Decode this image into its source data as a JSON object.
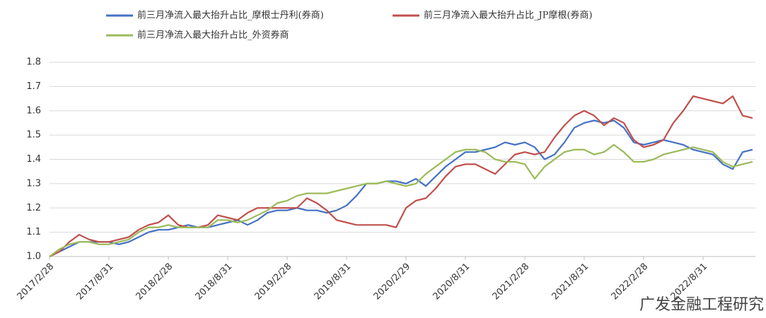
{
  "chart_data": {
    "type": "line",
    "categories": [
      "2017/2/28",
      null,
      null,
      null,
      null,
      null,
      "2017/8/31",
      null,
      null,
      null,
      null,
      null,
      "2018/2/28",
      null,
      null,
      null,
      null,
      null,
      "2018/8/31",
      null,
      null,
      null,
      null,
      null,
      "2019/2/28",
      null,
      null,
      null,
      null,
      null,
      "2019/8/31",
      null,
      null,
      null,
      null,
      null,
      "2020/2/29",
      null,
      null,
      null,
      null,
      null,
      "2020/8/31",
      null,
      null,
      null,
      null,
      null,
      "2021/2/28",
      null,
      null,
      null,
      null,
      null,
      "2021/8/31",
      null,
      null,
      null,
      null,
      null,
      "2022/2/28",
      null,
      null,
      null,
      null,
      null,
      "2022/8/31",
      null,
      null,
      null,
      null,
      null
    ],
    "series": [
      {
        "name": "前三月净流入最大抬升占比_摩根士丹利(券商)",
        "color": "#4472c4",
        "values": [
          1.0,
          1.02,
          1.04,
          1.06,
          1.06,
          1.06,
          1.06,
          1.05,
          1.06,
          1.08,
          1.1,
          1.11,
          1.11,
          1.12,
          1.13,
          1.12,
          1.12,
          1.13,
          1.14,
          1.15,
          1.13,
          1.15,
          1.18,
          1.19,
          1.19,
          1.2,
          1.19,
          1.19,
          1.18,
          1.19,
          1.21,
          1.25,
          1.3,
          1.3,
          1.31,
          1.31,
          1.3,
          1.32,
          1.29,
          1.33,
          1.37,
          1.4,
          1.43,
          1.43,
          1.44,
          1.45,
          1.47,
          1.46,
          1.47,
          1.45,
          1.4,
          1.42,
          1.47,
          1.53,
          1.55,
          1.56,
          1.55,
          1.56,
          1.53,
          1.47,
          1.46,
          1.47,
          1.48,
          1.47,
          1.46,
          1.44,
          1.43,
          1.42,
          1.38,
          1.36,
          1.43,
          1.44
        ]
      },
      {
        "name": "前三月净流入最大抬升占比_JP摩根(券商)",
        "color": "#c0504d",
        "values": [
          1.0,
          1.02,
          1.06,
          1.09,
          1.07,
          1.06,
          1.06,
          1.07,
          1.08,
          1.11,
          1.13,
          1.14,
          1.17,
          1.13,
          1.12,
          1.12,
          1.13,
          1.17,
          1.16,
          1.15,
          1.18,
          1.2,
          1.2,
          1.2,
          1.2,
          1.2,
          1.24,
          1.22,
          1.19,
          1.15,
          1.14,
          1.13,
          1.13,
          1.13,
          1.13,
          1.12,
          1.2,
          1.23,
          1.24,
          1.28,
          1.33,
          1.37,
          1.38,
          1.38,
          1.36,
          1.34,
          1.38,
          1.42,
          1.43,
          1.42,
          1.43,
          1.49,
          1.54,
          1.58,
          1.6,
          1.58,
          1.54,
          1.57,
          1.55,
          1.48,
          1.45,
          1.46,
          1.48,
          1.55,
          1.6,
          1.66,
          1.65,
          1.64,
          1.63,
          1.66,
          1.58,
          1.57
        ]
      },
      {
        "name": "前三月净流入最大抬升占比_外资券商",
        "color": "#9bbb59",
        "values": [
          1.0,
          1.03,
          1.05,
          1.06,
          1.06,
          1.05,
          1.05,
          1.06,
          1.07,
          1.1,
          1.12,
          1.12,
          1.13,
          1.12,
          1.12,
          1.12,
          1.12,
          1.15,
          1.15,
          1.14,
          1.15,
          1.17,
          1.19,
          1.22,
          1.23,
          1.25,
          1.26,
          1.26,
          1.26,
          1.27,
          1.28,
          1.29,
          1.3,
          1.3,
          1.31,
          1.3,
          1.29,
          1.3,
          1.34,
          1.37,
          1.4,
          1.43,
          1.44,
          1.44,
          1.43,
          1.4,
          1.39,
          1.39,
          1.38,
          1.32,
          1.37,
          1.4,
          1.43,
          1.44,
          1.44,
          1.42,
          1.43,
          1.46,
          1.43,
          1.39,
          1.39,
          1.4,
          1.42,
          1.43,
          1.44,
          1.45,
          1.44,
          1.43,
          1.39,
          1.37,
          1.38,
          1.39
        ]
      }
    ],
    "ylim": [
      1.0,
      1.8
    ],
    "yticks": [
      {
        "value": 1,
        "label": "1.0"
      },
      1.1,
      1.2,
      1.3,
      1.4,
      1.5,
      1.6,
      1.7,
      1.8
    ],
    "grid": true,
    "legend": "top",
    "watermark": "广发金融工程研究"
  }
}
